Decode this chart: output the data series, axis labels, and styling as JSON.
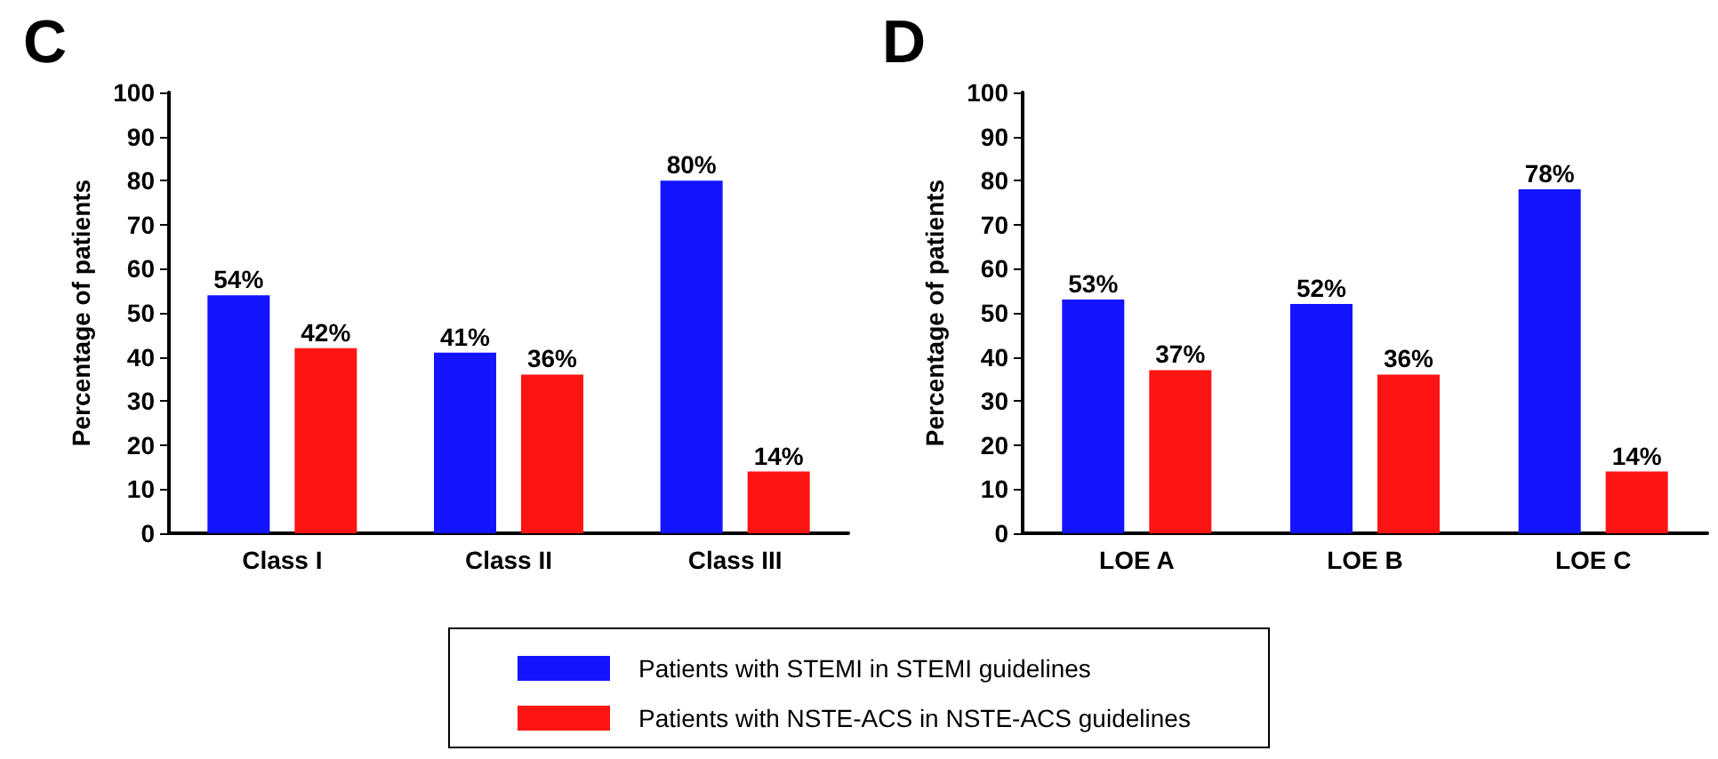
{
  "chart_data": [
    {
      "type": "bar",
      "title": "C",
      "ylabel": "Percentage of patients",
      "categories": [
        "Class I",
        "Class II",
        "Class III"
      ],
      "ylim": [
        0,
        100
      ],
      "yticks": [
        0,
        10,
        20,
        30,
        40,
        50,
        60,
        70,
        80,
        90,
        100
      ],
      "grid": false,
      "legend": "bottom",
      "series": [
        {
          "name": "Patients with STEMI in STEMI guidelines",
          "color": "#1414ff",
          "values": [
            54,
            41,
            80
          ],
          "value_labels": [
            "54%",
            "41%",
            "80%"
          ]
        },
        {
          "name": "Patients with NSTE-ACS in  NSTE-ACS guidelines",
          "color": "#ff1414",
          "values": [
            42,
            36,
            14
          ],
          "value_labels": [
            "42%",
            "36%",
            "14%"
          ]
        }
      ]
    },
    {
      "type": "bar",
      "title": "D",
      "ylabel": "Percentage of patients",
      "categories": [
        "LOE A",
        "LOE B",
        "LOE C"
      ],
      "ylim": [
        0,
        100
      ],
      "yticks": [
        0,
        10,
        20,
        30,
        40,
        50,
        60,
        70,
        80,
        90,
        100
      ],
      "grid": false,
      "series": [
        {
          "color": "#1414ff",
          "values": [
            53,
            52,
            78
          ],
          "value_labels": [
            "53%",
            "52%",
            "78%"
          ]
        },
        {
          "color": "#ff1414",
          "values": [
            37,
            36,
            14
          ],
          "value_labels": [
            "37%",
            "36%",
            "14%"
          ]
        }
      ]
    }
  ]
}
